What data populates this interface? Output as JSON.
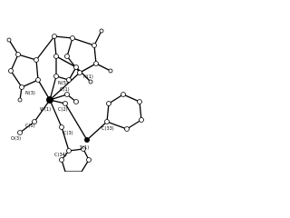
{
  "atom_labels": [
    "N(3)",
    "N(5)",
    "N(1)",
    "W(1)",
    "C(2)",
    "C(1)",
    "C(5)",
    "O(3)",
    "C(3)",
    "S(1)",
    "C(33)",
    "C(34)"
  ]
}
